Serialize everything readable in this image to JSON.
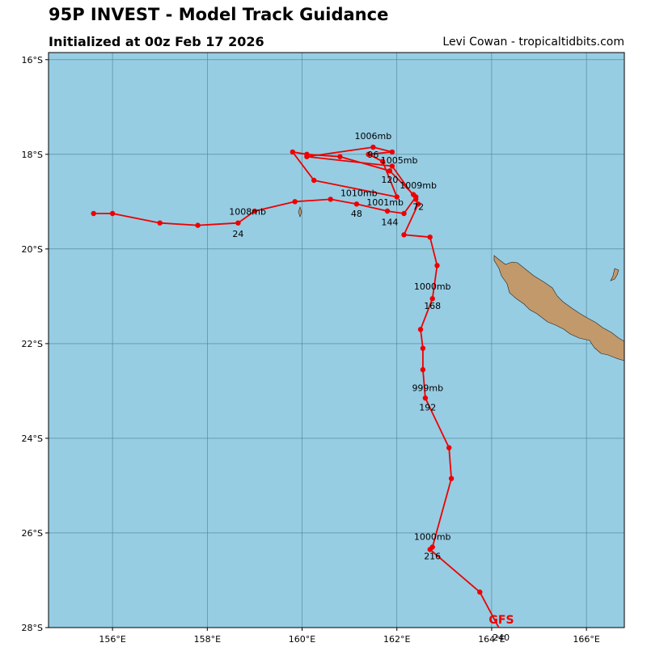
{
  "header": {
    "title": "95P INVEST - Model Track Guidance",
    "subtitle": "Initialized at 00z Feb 17 2026",
    "credit": "Levi Cowan - tropicaltidbits.com"
  },
  "map": {
    "lon_range": [
      154.65,
      166.8
    ],
    "lat_range": [
      -28.0,
      -15.85
    ],
    "ocean_color": "#96cde3",
    "land_color": "#c2996b",
    "track_color": "#ee0000",
    "lon_ticks": [
      "156°E",
      "158°E",
      "160°E",
      "162°E",
      "164°E",
      "166°E"
    ],
    "lat_ticks": [
      "16°S",
      "18°S",
      "20°S",
      "22°S",
      "24°S",
      "26°S",
      "28°S"
    ]
  },
  "track": {
    "model": "GFS",
    "points": [
      [
        155.6,
        -19.25
      ],
      [
        156.0,
        -19.25
      ],
      [
        157.0,
        -19.45
      ],
      [
        157.8,
        -19.5
      ],
      [
        158.65,
        -19.45
      ],
      [
        159.0,
        -19.2
      ],
      [
        159.85,
        -19.0
      ],
      [
        160.6,
        -18.95
      ],
      [
        161.15,
        -19.05
      ],
      [
        161.8,
        -19.2
      ],
      [
        162.15,
        -19.25
      ],
      [
        162.4,
        -18.9
      ],
      [
        162.35,
        -18.85
      ],
      [
        161.85,
        -18.35
      ],
      [
        160.8,
        -18.05
      ],
      [
        160.1,
        -18.0
      ],
      [
        159.8,
        -17.95
      ],
      [
        160.25,
        -18.55
      ],
      [
        162.0,
        -18.9
      ],
      [
        161.7,
        -18.15
      ],
      [
        161.4,
        -18.0
      ],
      [
        161.9,
        -17.95
      ],
      [
        161.5,
        -17.85
      ],
      [
        160.1,
        -18.05
      ],
      [
        161.9,
        -18.25
      ],
      [
        162.4,
        -18.95
      ],
      [
        162.45,
        -19.05
      ],
      [
        162.15,
        -19.7
      ],
      [
        162.7,
        -19.75
      ],
      [
        162.85,
        -20.35
      ],
      [
        162.75,
        -21.05
      ],
      [
        162.5,
        -21.7
      ],
      [
        162.55,
        -22.1
      ],
      [
        162.55,
        -22.55
      ],
      [
        162.6,
        -23.15
      ],
      [
        163.1,
        -24.2
      ],
      [
        163.15,
        -24.85
      ],
      [
        162.75,
        -26.3
      ],
      [
        162.7,
        -26.35
      ],
      [
        163.75,
        -27.25
      ],
      [
        164.15,
        -28.0
      ]
    ],
    "labels": [
      {
        "text": "1008mb",
        "lon": 158.85,
        "lat": -19.28
      },
      {
        "text": "24",
        "lon": 158.65,
        "lat": -19.75
      },
      {
        "text": "1010mb",
        "lon": 161.2,
        "lat": -18.88
      },
      {
        "text": "48",
        "lon": 161.15,
        "lat": -19.32
      },
      {
        "text": "1006mb",
        "lon": 161.5,
        "lat": -17.68
      },
      {
        "text": "96",
        "lon": 161.5,
        "lat": -18.07
      },
      {
        "text": "1005mb",
        "lon": 162.05,
        "lat": -18.19
      },
      {
        "text": "120",
        "lon": 161.85,
        "lat": -18.6
      },
      {
        "text": "1009mb",
        "lon": 162.45,
        "lat": -18.72
      },
      {
        "text": "1001mb",
        "lon": 161.75,
        "lat": -19.08
      },
      {
        "text": "72",
        "lon": 162.45,
        "lat": -19.17
      },
      {
        "text": "144",
        "lon": 161.85,
        "lat": -19.5
      },
      {
        "text": "1000mb",
        "lon": 162.75,
        "lat": -20.86
      },
      {
        "text": "168",
        "lon": 162.75,
        "lat": -21.27
      },
      {
        "text": "999mb",
        "lon": 162.65,
        "lat": -23.0
      },
      {
        "text": "192",
        "lon": 162.65,
        "lat": -23.41
      },
      {
        "text": "1000mb",
        "lon": 162.75,
        "lat": -26.15
      },
      {
        "text": "216",
        "lon": 162.75,
        "lat": -26.56
      },
      {
        "text": "240",
        "lon": 164.2,
        "lat": -28.27
      }
    ]
  }
}
